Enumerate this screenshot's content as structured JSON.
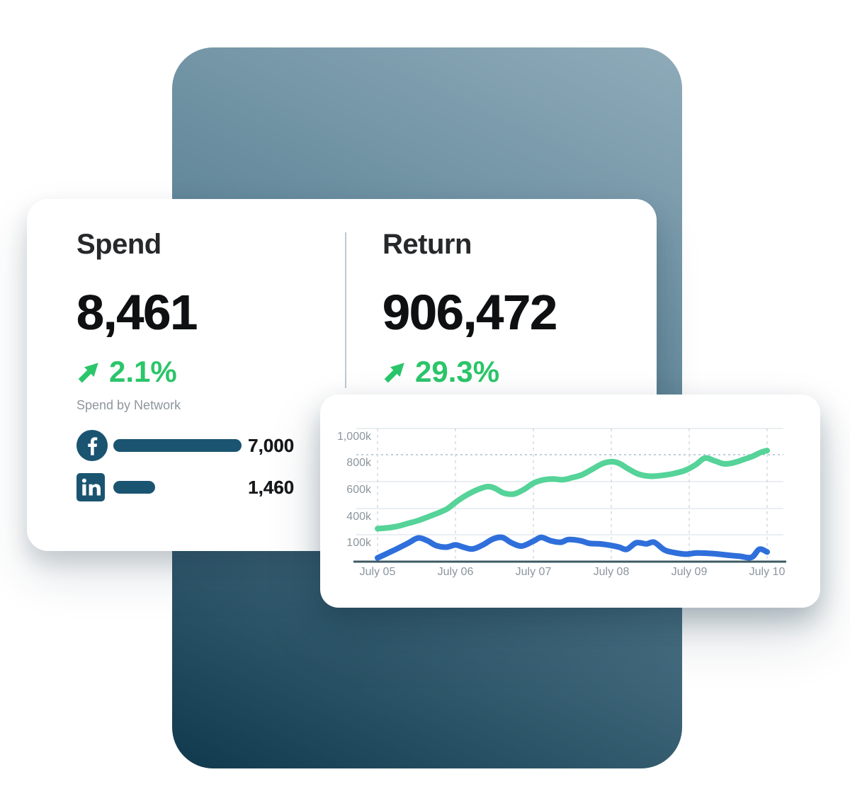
{
  "colors": {
    "accent_green": "#2bc56a",
    "network_teal": "#1a5470",
    "chart_green": "#55d398",
    "chart_blue": "#2f6fdb",
    "gradient_top": "#8fabba",
    "gradient_mid": "#5d8496",
    "gradient_bottom": "#11394d",
    "axis_dark": "#3d5a64",
    "grid_light": "#e3e9ee",
    "grid_dashed": "#aabfcc",
    "grid_vertical": "#ccd6dd",
    "tick_text": "#8b969d",
    "heading_text": "#26282a",
    "number_text": "#0e1012",
    "muted_text": "#8e979c"
  },
  "stats_card": {
    "spend": {
      "label": "Spend",
      "value": "8,461",
      "change": "2.1%",
      "trend": "up"
    },
    "return": {
      "label": "Return",
      "value": "906,472",
      "change": "29.3%",
      "trend": "up"
    },
    "network_section": {
      "title": "Spend by Network",
      "items": [
        {
          "network": "facebook",
          "icon": "facebook-icon",
          "value": "7,000",
          "amount": 7000,
          "bar_width_pct": 100
        },
        {
          "network": "linkedin",
          "icon": "linkedin-icon",
          "value": "1,460",
          "amount": 1460,
          "bar_width_pct": 32.6
        }
      ]
    }
  },
  "chart_data": {
    "type": "line",
    "title": "",
    "xlabel": "",
    "ylabel": "",
    "x_ticks": [
      "July 05",
      "July 06",
      "July 07",
      "July 08",
      "July 09",
      "July 10"
    ],
    "x_range_days": [
      0,
      5
    ],
    "y_unit": "k",
    "y_ticks": [
      {
        "value": 1000,
        "label": "1,000k",
        "grid_style": "solid"
      },
      {
        "value": 800,
        "label": "800k",
        "grid_style": "dashed"
      },
      {
        "value": 600,
        "label": "600k",
        "grid_style": "solid"
      },
      {
        "value": 400,
        "label": "400k",
        "grid_style": "solid"
      },
      {
        "value": 100,
        "label": "100k",
        "grid_style": "solid"
      }
    ],
    "axis_note": "y tick gridlines are evenly spaced; bottom tick is 100k",
    "grid": true,
    "legend": "none",
    "series": [
      {
        "name": "return",
        "color": "#55d398",
        "points": [
          [
            0,
            170
          ],
          [
            0.12,
            178
          ],
          [
            0.25,
            196
          ],
          [
            0.4,
            232
          ],
          [
            0.52,
            262
          ],
          [
            0.65,
            305
          ],
          [
            0.78,
            350
          ],
          [
            0.9,
            400
          ],
          [
            1.0,
            445
          ],
          [
            1.12,
            492
          ],
          [
            1.25,
            532
          ],
          [
            1.4,
            562
          ],
          [
            1.5,
            552
          ],
          [
            1.62,
            515
          ],
          [
            1.75,
            508
          ],
          [
            1.88,
            542
          ],
          [
            2.0,
            588
          ],
          [
            2.12,
            612
          ],
          [
            2.25,
            620
          ],
          [
            2.38,
            614
          ],
          [
            2.5,
            630
          ],
          [
            2.62,
            650
          ],
          [
            2.75,
            690
          ],
          [
            2.88,
            732
          ],
          [
            3.0,
            748
          ],
          [
            3.1,
            736
          ],
          [
            3.22,
            694
          ],
          [
            3.35,
            656
          ],
          [
            3.5,
            640
          ],
          [
            3.65,
            646
          ],
          [
            3.8,
            660
          ],
          [
            3.95,
            684
          ],
          [
            4.08,
            724
          ],
          [
            4.2,
            775
          ],
          [
            4.32,
            756
          ],
          [
            4.45,
            732
          ],
          [
            4.58,
            742
          ],
          [
            4.7,
            765
          ],
          [
            4.82,
            790
          ],
          [
            4.92,
            818
          ],
          [
            5.0,
            832
          ]
        ]
      },
      {
        "name": "spend",
        "color": "#2f6fdb",
        "points": [
          [
            0,
            14
          ],
          [
            0.12,
            30
          ],
          [
            0.25,
            48
          ],
          [
            0.4,
            70
          ],
          [
            0.52,
            88
          ],
          [
            0.64,
            78
          ],
          [
            0.75,
            60
          ],
          [
            0.88,
            54
          ],
          [
            1.0,
            62
          ],
          [
            1.1,
            54
          ],
          [
            1.22,
            47
          ],
          [
            1.35,
            62
          ],
          [
            1.48,
            84
          ],
          [
            1.6,
            90
          ],
          [
            1.72,
            70
          ],
          [
            1.85,
            58
          ],
          [
            2.0,
            76
          ],
          [
            2.1,
            90
          ],
          [
            2.22,
            78
          ],
          [
            2.35,
            72
          ],
          [
            2.45,
            82
          ],
          [
            2.6,
            78
          ],
          [
            2.72,
            68
          ],
          [
            2.85,
            66
          ],
          [
            3.0,
            60
          ],
          [
            3.1,
            54
          ],
          [
            3.2,
            46
          ],
          [
            3.32,
            70
          ],
          [
            3.45,
            66
          ],
          [
            3.55,
            72
          ],
          [
            3.68,
            44
          ],
          [
            3.8,
            34
          ],
          [
            3.95,
            28
          ],
          [
            4.1,
            32
          ],
          [
            4.3,
            30
          ],
          [
            4.5,
            24
          ],
          [
            4.65,
            20
          ],
          [
            4.8,
            16
          ],
          [
            4.9,
            46
          ],
          [
            5.0,
            36
          ]
        ]
      }
    ]
  }
}
